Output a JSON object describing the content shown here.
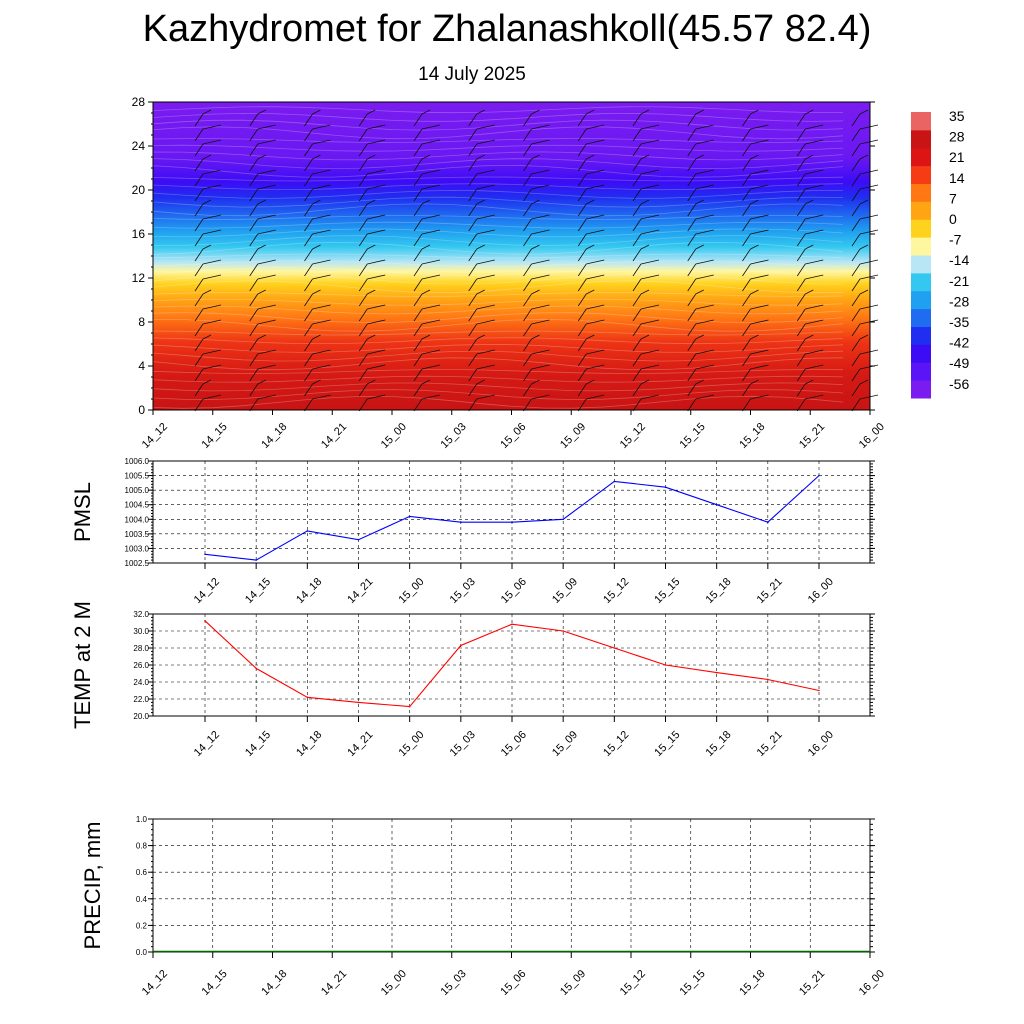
{
  "title": "Kazhydromet for Zhalanashkoll(45.57 82.4)",
  "subtitle": "14 July 2025",
  "time_labels": [
    "14_12",
    "14_15",
    "14_18",
    "14_21",
    "15_00",
    "15_03",
    "15_06",
    "15_09",
    "15_12",
    "15_15",
    "15_18",
    "15_21",
    "16_00"
  ],
  "colorbar": {
    "labels": [
      "35",
      "28",
      "21",
      "14",
      "7",
      "0",
      "-7",
      "-14",
      "-21",
      "-28",
      "-35",
      "-42",
      "-49",
      "-56"
    ],
    "colors": [
      "#7a1cf0",
      "#5b14f5",
      "#3c0cf5",
      "#1f2ef0",
      "#1f6cf0",
      "#1fa0f0",
      "#34c8f0",
      "#b8e6f5",
      "#fff6a0",
      "#ffd21e",
      "#ffa514",
      "#ff7814",
      "#f53c14",
      "#dc1414",
      "#c81414",
      "#eb6464"
    ]
  },
  "chart_data": [
    {
      "type": "heatmap",
      "name": "temperature_wind_profile",
      "yticks": [
        "0",
        "4",
        "8",
        "12",
        "16",
        "20",
        "24",
        "28"
      ],
      "ylim": [
        0,
        28
      ],
      "x": [
        "14_12",
        "14_15",
        "14_18",
        "14_21",
        "15_00",
        "15_03",
        "15_06",
        "15_09",
        "15_12",
        "15_15",
        "15_18",
        "15_21",
        "16_00"
      ],
      "grid": false
    },
    {
      "type": "line",
      "ylabel": "PMSL",
      "x": [
        "14_12",
        "14_15",
        "14_18",
        "14_21",
        "15_00",
        "15_03",
        "15_06",
        "15_09",
        "15_12",
        "15_15",
        "15_18",
        "15_21",
        "16_00"
      ],
      "values": [
        1002.8,
        1002.6,
        1003.6,
        1003.3,
        1004.1,
        1003.9,
        1003.9,
        1004.0,
        1005.3,
        1005.1,
        1004.5,
        1003.9,
        1005.5
      ],
      "ylim": [
        1002.5,
        1006.0
      ],
      "yticks": [
        "1002.5",
        "1003.0",
        "1003.5",
        "1004.0",
        "1004.5",
        "1005.0",
        "1005.5",
        "1006.0"
      ],
      "color": "#0000ff",
      "grid": true
    },
    {
      "type": "line",
      "ylabel": "TEMP at 2 M",
      "x": [
        "14_12",
        "14_15",
        "14_18",
        "14_21",
        "15_00",
        "15_03",
        "15_06",
        "15_09",
        "15_12",
        "15_15",
        "15_18",
        "15_21",
        "16_00"
      ],
      "values": [
        31.2,
        25.6,
        22.2,
        21.6,
        21.1,
        28.3,
        30.8,
        30.0,
        28.0,
        26.0,
        25.1,
        24.3,
        23.0
      ],
      "ylim": [
        20.0,
        32.0
      ],
      "yticks": [
        "20.0",
        "22.0",
        "24.0",
        "26.0",
        "28.0",
        "30.0",
        "32.0"
      ],
      "color": "#ff0000",
      "grid": true
    },
    {
      "type": "line",
      "ylabel": "PRECIP, mm",
      "x": [
        "14_12",
        "14_15",
        "14_18",
        "14_21",
        "15_00",
        "15_03",
        "15_06",
        "15_09",
        "15_12",
        "15_15",
        "15_18",
        "15_21",
        "16_00"
      ],
      "values": [
        0,
        0,
        0,
        0,
        0,
        0,
        0,
        0,
        0,
        0,
        0,
        0,
        0
      ],
      "ylim": [
        0.0,
        1.0
      ],
      "yticks": [
        "0.0",
        "0.2",
        "0.4",
        "0.6",
        "0.8",
        "1.0"
      ],
      "color": "#006400",
      "grid": true
    }
  ]
}
